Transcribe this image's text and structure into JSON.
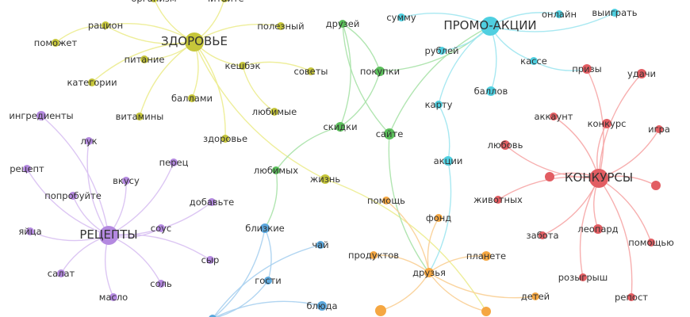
{
  "groups": {
    "health": {
      "node": "#c6c63a",
      "edge": "#ecec8f"
    },
    "shop": {
      "node": "#5bbf5b",
      "edge": "#a8e2a8"
    },
    "promo": {
      "node": "#4fcfe0",
      "edge": "#9ee6f0"
    },
    "contest": {
      "node": "#e25d62",
      "edge": "#f6a6a6"
    },
    "recipes": {
      "node": "#b489e0",
      "edge": "#d8c0f2"
    },
    "family": {
      "node": "#5ba7dc",
      "edge": "#a9d0ef"
    },
    "charity": {
      "node": "#f5a742",
      "edge": "#f9cf95"
    }
  },
  "nodes": [
    {
      "id": "zdorovye",
      "label": "ЗДОРОВЬЕ",
      "group": "health",
      "hub": true
    },
    {
      "id": "organizm",
      "label": "организм",
      "group": "health"
    },
    {
      "id": "chitayte",
      "label": "читайте",
      "group": "health"
    },
    {
      "id": "ratsion",
      "label": "рацион",
      "group": "health"
    },
    {
      "id": "pomozhet",
      "label": "поможет",
      "group": "health"
    },
    {
      "id": "pitanie",
      "label": "питание",
      "group": "health"
    },
    {
      "id": "kategorii",
      "label": "категории",
      "group": "health"
    },
    {
      "id": "ballami",
      "label": "баллами",
      "group": "health"
    },
    {
      "id": "vitaminy",
      "label": "витамины",
      "group": "health"
    },
    {
      "id": "polezny",
      "label": "полезный",
      "group": "health"
    },
    {
      "id": "keshbek",
      "label": "кешбэк",
      "group": "health"
    },
    {
      "id": "sovety",
      "label": "советы",
      "group": "health"
    },
    {
      "id": "lyubimye",
      "label": "любимые",
      "group": "health"
    },
    {
      "id": "zdorovye2",
      "label": "здоровье",
      "group": "health"
    },
    {
      "id": "zhizn",
      "label": "жизнь",
      "group": "health"
    },
    {
      "id": "druzey",
      "label": "друзей",
      "group": "shop"
    },
    {
      "id": "pokupki",
      "label": "покупки",
      "group": "shop"
    },
    {
      "id": "skidki",
      "label": "скидки",
      "group": "shop"
    },
    {
      "id": "sayte",
      "label": "сайте",
      "group": "shop"
    },
    {
      "id": "lyubimykh",
      "label": "любимых",
      "group": "shop"
    },
    {
      "id": "promo",
      "label": "ПРОМО-АКЦИИ",
      "group": "promo",
      "hub": true
    },
    {
      "id": "summu",
      "label": "сумму",
      "group": "promo"
    },
    {
      "id": "onlayn",
      "label": "онлайн",
      "group": "promo"
    },
    {
      "id": "vyigrat",
      "label": "выиграть",
      "group": "promo"
    },
    {
      "id": "rubley",
      "label": "рублей",
      "group": "promo"
    },
    {
      "id": "kasse",
      "label": "кассе",
      "group": "promo"
    },
    {
      "id": "ballov",
      "label": "баллов",
      "group": "promo"
    },
    {
      "id": "kartu",
      "label": "карту",
      "group": "promo"
    },
    {
      "id": "aktsii",
      "label": "акции",
      "group": "promo"
    },
    {
      "id": "konkursy",
      "label": "КОНКУРСЫ",
      "group": "contest",
      "hub": true
    },
    {
      "id": "prizy",
      "label": "призы",
      "group": "contest"
    },
    {
      "id": "udachi",
      "label": "удачи",
      "group": "contest"
    },
    {
      "id": "akkaunt",
      "label": "аккаунт",
      "group": "contest"
    },
    {
      "id": "konkurs",
      "label": "конкурс",
      "group": "contest"
    },
    {
      "id": "igra",
      "label": "игра",
      "group": "contest"
    },
    {
      "id": "lyubov",
      "label": "любовь",
      "group": "contest"
    },
    {
      "id": "c_anon1",
      "label": "",
      "group": "contest"
    },
    {
      "id": "c_anon2",
      "label": "",
      "group": "contest"
    },
    {
      "id": "zhivotnykh",
      "label": "животных",
      "group": "contest"
    },
    {
      "id": "zabota",
      "label": "забота",
      "group": "contest"
    },
    {
      "id": "leopard",
      "label": "леопард",
      "group": "contest"
    },
    {
      "id": "pomoshchyu",
      "label": "помощью",
      "group": "contest"
    },
    {
      "id": "rozygrysh",
      "label": "розыгрыш",
      "group": "contest"
    },
    {
      "id": "repost",
      "label": "репост",
      "group": "contest"
    },
    {
      "id": "retsepty",
      "label": "РЕЦЕПТЫ",
      "group": "recipes",
      "hub": true
    },
    {
      "id": "ingredienty",
      "label": "ингредиенты",
      "group": "recipes"
    },
    {
      "id": "luk",
      "label": "лук",
      "group": "recipes"
    },
    {
      "id": "perets",
      "label": "перец",
      "group": "recipes"
    },
    {
      "id": "retsept",
      "label": "рецепт",
      "group": "recipes"
    },
    {
      "id": "vkusu",
      "label": "вкусу",
      "group": "recipes"
    },
    {
      "id": "poprobuyte",
      "label": "попробуйте",
      "group": "recipes"
    },
    {
      "id": "dobavte",
      "label": "добавьте",
      "group": "recipes"
    },
    {
      "id": "yaytsa",
      "label": "яйца",
      "group": "recipes"
    },
    {
      "id": "sous",
      "label": "соус",
      "group": "recipes"
    },
    {
      "id": "syr",
      "label": "сыр",
      "group": "recipes"
    },
    {
      "id": "salat",
      "label": "салат",
      "group": "recipes"
    },
    {
      "id": "sol",
      "label": "соль",
      "group": "recipes"
    },
    {
      "id": "maslo",
      "label": "масло",
      "group": "recipes"
    },
    {
      "id": "blizkie",
      "label": "близкие",
      "group": "family"
    },
    {
      "id": "chay",
      "label": "чай",
      "group": "family"
    },
    {
      "id": "gosti",
      "label": "гости",
      "group": "family"
    },
    {
      "id": "blyuda",
      "label": "блюда",
      "group": "family"
    },
    {
      "id": "f_anon1",
      "label": "",
      "group": "family"
    },
    {
      "id": "pomoshch",
      "label": "помощь",
      "group": "charity"
    },
    {
      "id": "fond",
      "label": "фонд",
      "group": "charity"
    },
    {
      "id": "produktov",
      "label": "продуктов",
      "group": "charity"
    },
    {
      "id": "planete",
      "label": "планете",
      "group": "charity"
    },
    {
      "id": "druzya",
      "label": "друзья",
      "group": "charity"
    },
    {
      "id": "detey",
      "label": "детей",
      "group": "charity"
    },
    {
      "id": "o_anon1",
      "label": "",
      "group": "charity"
    },
    {
      "id": "o_anon2",
      "label": "",
      "group": "charity"
    }
  ],
  "edges": [
    [
      "zdorovye",
      "organizm"
    ],
    [
      "zdorovye",
      "chitayte"
    ],
    [
      "zdorovye",
      "ratsion"
    ],
    [
      "ratsion",
      "pomozhet"
    ],
    [
      "zdorovye",
      "pitanie"
    ],
    [
      "zdorovye",
      "kategorii"
    ],
    [
      "zdorovye",
      "ballami"
    ],
    [
      "zdorovye",
      "vitaminy"
    ],
    [
      "zdorovye",
      "polezny"
    ],
    [
      "zdorovye",
      "keshbek"
    ],
    [
      "keshbek",
      "sovety"
    ],
    [
      "keshbek",
      "lyubimye"
    ],
    [
      "zdorovye",
      "zdorovye2"
    ],
    [
      "zdorovye",
      "zhizn"
    ],
    [
      "zhizn",
      "o_anon2"
    ],
    [
      "zdorovye",
      "ratsion"
    ],
    [
      "druzey",
      "pokupki"
    ],
    [
      "druzey",
      "sayte"
    ],
    [
      "pokupki",
      "skidki"
    ],
    [
      "pokupki",
      "promo"
    ],
    [
      "sayte",
      "promo"
    ],
    [
      "skidki",
      "lyubimykh"
    ],
    [
      "lyubimykh",
      "blizkie"
    ],
    [
      "sayte",
      "druzya"
    ],
    [
      "druzey",
      "skidki"
    ],
    [
      "promo",
      "summu"
    ],
    [
      "promo",
      "onlayn"
    ],
    [
      "promo",
      "vyigrat"
    ],
    [
      "promo",
      "rubley"
    ],
    [
      "promo",
      "kasse"
    ],
    [
      "promo",
      "ballov"
    ],
    [
      "promo",
      "kartu"
    ],
    [
      "kartu",
      "aktsii"
    ],
    [
      "kasse",
      "prizy"
    ],
    [
      "aktsii",
      "druzya"
    ],
    [
      "konkursy",
      "prizy"
    ],
    [
      "konkursy",
      "udachi"
    ],
    [
      "konkursy",
      "akkaunt"
    ],
    [
      "konkursy",
      "konkurs"
    ],
    [
      "konkursy",
      "igra"
    ],
    [
      "konkursy",
      "lyubov"
    ],
    [
      "konkursy",
      "c_anon1"
    ],
    [
      "konkursy",
      "c_anon2"
    ],
    [
      "konkursy",
      "zhivotnykh"
    ],
    [
      "konkursy",
      "zabota"
    ],
    [
      "konkursy",
      "leopard"
    ],
    [
      "konkursy",
      "pomoshchyu"
    ],
    [
      "konkursy",
      "rozygrysh"
    ],
    [
      "konkursy",
      "repost"
    ],
    [
      "retsepty",
      "ingredienty"
    ],
    [
      "retsepty",
      "luk"
    ],
    [
      "retsepty",
      "perets"
    ],
    [
      "retsepty",
      "retsept"
    ],
    [
      "retsepty",
      "vkusu"
    ],
    [
      "retsepty",
      "poprobuyte"
    ],
    [
      "retsepty",
      "dobavte"
    ],
    [
      "retsepty",
      "yaytsa"
    ],
    [
      "retsepty",
      "sous"
    ],
    [
      "retsepty",
      "syr"
    ],
    [
      "retsepty",
      "salat"
    ],
    [
      "retsepty",
      "sol"
    ],
    [
      "retsepty",
      "maslo"
    ],
    [
      "blizkie",
      "gosti"
    ],
    [
      "chay",
      "f_anon1"
    ],
    [
      "gosti",
      "f_anon1"
    ],
    [
      "blyuda",
      "f_anon1"
    ],
    [
      "blizkie",
      "f_anon1"
    ],
    [
      "druzya",
      "pomoshch"
    ],
    [
      "druzya",
      "fond"
    ],
    [
      "druzya",
      "produktov"
    ],
    [
      "druzya",
      "planete"
    ],
    [
      "druzya",
      "detey"
    ],
    [
      "druzya",
      "o_anon1"
    ],
    [
      "druzya",
      "o_anon2"
    ]
  ]
}
